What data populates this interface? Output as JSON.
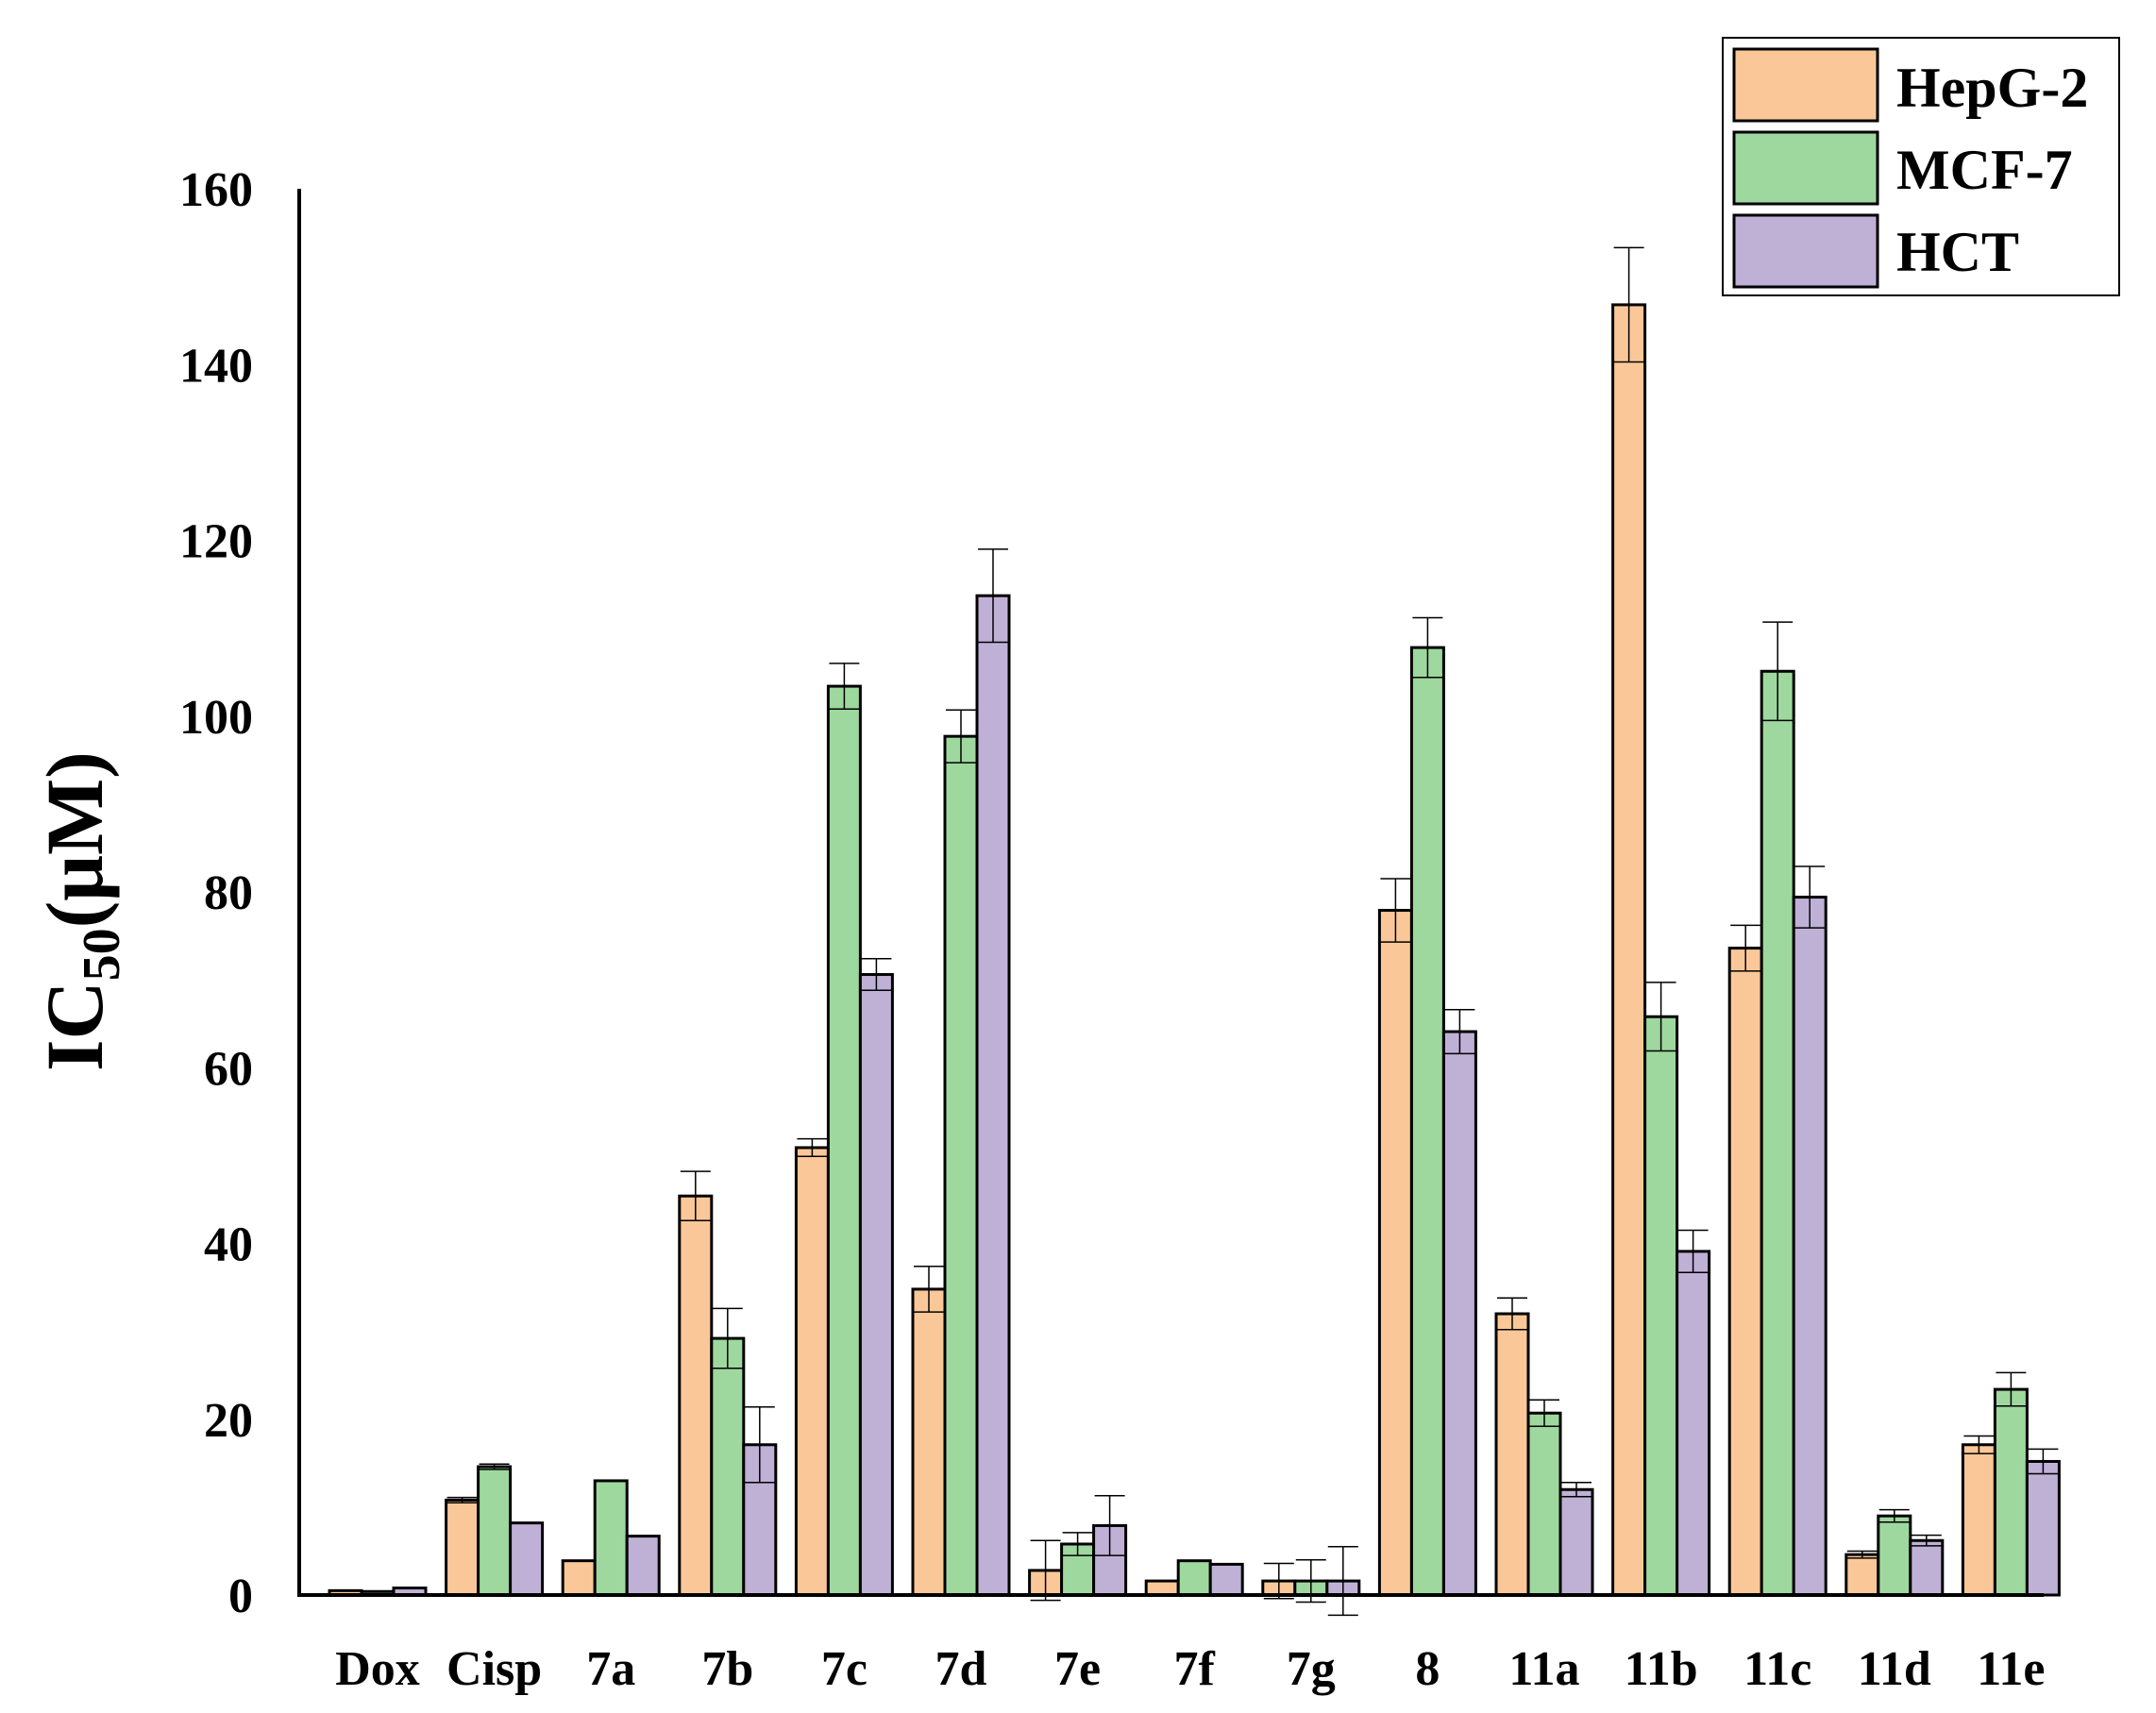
{
  "chart_data": {
    "type": "bar",
    "title": "",
    "xlabel": "",
    "ylabel": "IC50(μM)",
    "ylabel_main": "IC",
    "ylabel_sub": "50",
    "ylabel_unit": "(μM)",
    "ylim": [
      0,
      160
    ],
    "yticks": [
      0,
      20,
      40,
      60,
      80,
      100,
      120,
      140,
      160
    ],
    "grid": false,
    "legend_position": "top-right",
    "categories": [
      "Dox",
      "Cisp",
      "7a",
      "7b",
      "7c",
      "7d",
      "7e",
      "7f",
      "7g",
      "8",
      "11a",
      "11b",
      "11c",
      "11d",
      "11e"
    ],
    "series": [
      {
        "name": "HepG-2",
        "color": "#FAC898",
        "values": [
          0.5,
          10.8,
          3.9,
          45.4,
          50.9,
          34.8,
          2.8,
          1.6,
          1.6,
          77.9,
          32.0,
          146.8,
          73.6,
          4.6,
          17.1
        ],
        "errors": [
          0.2,
          0.3,
          0.2,
          2.8,
          1.0,
          2.6,
          3.4,
          0.2,
          2.0,
          3.6,
          1.8,
          6.5,
          2.6,
          0.4,
          1.0
        ]
      },
      {
        "name": "MCF-7",
        "color": "#9ED89E",
        "values": [
          0.4,
          14.6,
          13.0,
          29.2,
          103.4,
          97.7,
          5.8,
          3.9,
          1.6,
          107.8,
          20.7,
          65.8,
          105.1,
          9.0,
          23.4
        ],
        "errors": [
          0.1,
          0.3,
          0.2,
          3.4,
          2.6,
          3.0,
          1.3,
          0.2,
          2.4,
          3.4,
          1.5,
          3.9,
          5.6,
          0.7,
          1.9
        ]
      },
      {
        "name": "HCT",
        "color": "#BFB1D6",
        "values": [
          0.8,
          8.2,
          6.7,
          17.1,
          70.6,
          113.7,
          7.9,
          3.5,
          1.6,
          64.1,
          12.0,
          39.1,
          79.4,
          6.2,
          15.2
        ],
        "errors": [
          0.2,
          0.2,
          0.2,
          4.3,
          1.8,
          5.3,
          3.4,
          0.2,
          3.9,
          2.5,
          0.8,
          2.4,
          3.5,
          0.6,
          1.4
        ]
      }
    ]
  }
}
